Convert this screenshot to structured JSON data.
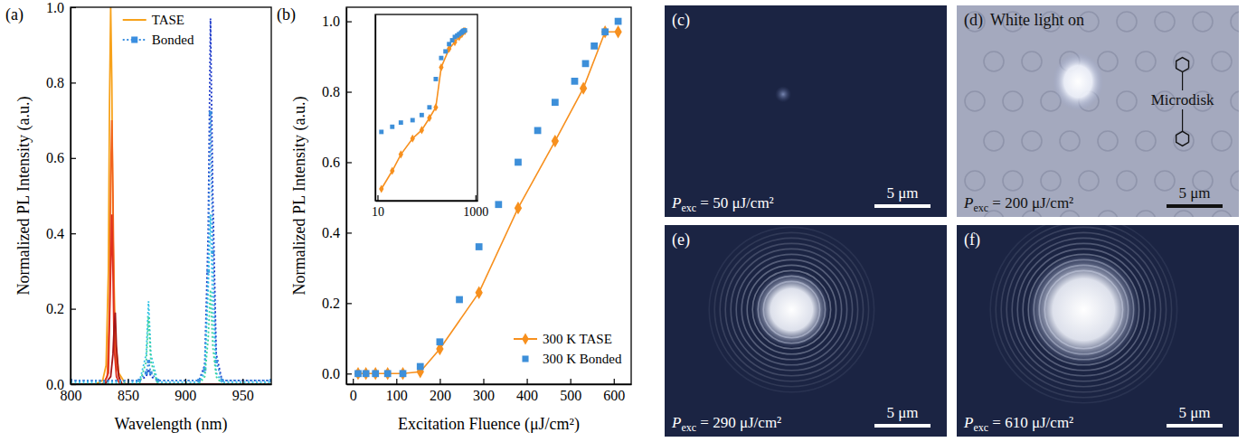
{
  "chart_data": [
    {
      "type": "line",
      "title": "(a)",
      "xlabel": "Wavelength (nm)",
      "ylabel": "Normalized PL Intensity (a.u.)",
      "xlim": [
        800,
        975
      ],
      "xticks": [
        800,
        850,
        900,
        950
      ],
      "ylim": [
        0,
        1
      ],
      "yticks": [
        {
          "value": 0,
          "label": "0.0"
        },
        {
          "value": 0.2,
          "label": "0.2"
        },
        {
          "value": 0.4,
          "label": "0.4"
        },
        {
          "value": 0.6,
          "label": "0.6"
        },
        {
          "value": 0.8,
          "label": "0.8"
        },
        {
          "value": 1,
          "label": "1.0"
        }
      ],
      "legend": "upper center",
      "series": [
        {
          "name": "TASE",
          "color": "#f7a21b",
          "line_style": "solid",
          "x": [
            800,
            822,
            828,
            831,
            833,
            834,
            835,
            836,
            837,
            839,
            842,
            848,
            975
          ],
          "values": [
            0,
            0,
            0.01,
            0.05,
            0.3,
            0.75,
            1.0,
            0.8,
            0.4,
            0.12,
            0.03,
            0,
            0
          ]
        },
        {
          "color": "#f2641e",
          "line_style": "solid",
          "x": [
            800,
            828,
            832,
            834,
            835,
            836,
            837,
            838,
            840,
            844,
            975
          ],
          "values": [
            0,
            0,
            0.02,
            0.2,
            0.55,
            0.7,
            0.5,
            0.2,
            0.05,
            0,
            0
          ]
        },
        {
          "color": "#e0301e",
          "line_style": "solid",
          "x": [
            800,
            829,
            833,
            835,
            836,
            837,
            838,
            840,
            843,
            975
          ],
          "values": [
            0,
            0,
            0.03,
            0.3,
            0.45,
            0.3,
            0.1,
            0.02,
            0,
            0
          ]
        },
        {
          "color": "#a51515",
          "line_style": "solid",
          "x": [
            800,
            830,
            835,
            837,
            838,
            839,
            840,
            842,
            845,
            975
          ],
          "values": [
            0,
            0,
            0.02,
            0.08,
            0.15,
            0.19,
            0.1,
            0.02,
            0,
            0
          ]
        },
        {
          "color": "#1533c8",
          "line_style": "dotted",
          "x": [
            800,
            860,
            866,
            868,
            870,
            876,
            912,
            917,
            920,
            922,
            924,
            927,
            932,
            975
          ],
          "values": [
            0.01,
            0.01,
            0.02,
            0.04,
            0.02,
            0.01,
            0.01,
            0.05,
            0.4,
            0.97,
            0.5,
            0.08,
            0.01,
            0.01
          ]
        },
        {
          "name": "Bonded",
          "color": "#3a8ee0",
          "line_style": "dotted",
          "marker": "square",
          "x": [
            800,
            860,
            866,
            868,
            870,
            876,
            912,
            917,
            920,
            922,
            924,
            927,
            932,
            975
          ],
          "values": [
            0.01,
            0.01,
            0.03,
            0.06,
            0.03,
            0.01,
            0.01,
            0.04,
            0.3,
            0.72,
            0.35,
            0.06,
            0.01,
            0.01
          ]
        },
        {
          "color": "#2fc3e6",
          "line_style": "dotted",
          "x": [
            800,
            860,
            866,
            868,
            870,
            876,
            912,
            917,
            920,
            922,
            924,
            927,
            932,
            975
          ],
          "values": [
            0.005,
            0.005,
            0.08,
            0.22,
            0.08,
            0.005,
            0.005,
            0.03,
            0.25,
            0.45,
            0.2,
            0.03,
            0.005,
            0.005
          ]
        },
        {
          "color": "#3dd49b",
          "line_style": "dotted",
          "x": [
            800,
            860,
            866,
            868,
            870,
            876,
            912,
            917,
            920,
            922,
            924,
            927,
            932,
            975
          ],
          "values": [
            0,
            0,
            0.06,
            0.18,
            0.06,
            0,
            0,
            0.02,
            0.12,
            0.25,
            0.1,
            0.02,
            0,
            0
          ]
        }
      ]
    },
    {
      "type": "scatter",
      "title": "(b)",
      "xlabel": "Excitation Fluence (μJ/cm²)",
      "ylabel": "Normalized PL Intensity (a.u.)",
      "xlim": [
        -15,
        640
      ],
      "xticks": [
        0,
        100,
        200,
        300,
        400,
        500,
        600
      ],
      "ylim": [
        -0.03,
        1.04
      ],
      "yticks": [
        {
          "value": 0,
          "label": "0.0"
        },
        {
          "value": 0.2,
          "label": "0.2"
        },
        {
          "value": 0.4,
          "label": "0.4"
        },
        {
          "value": 0.6,
          "label": "0.6"
        },
        {
          "value": 0.8,
          "label": "0.8"
        },
        {
          "value": 1,
          "label": "1.0"
        }
      ],
      "legend": "lower right",
      "series": [
        {
          "name": "300 K TASE",
          "color": "#f7901e",
          "marker": "diamond",
          "line_style": "solid",
          "x": [
            12,
            30,
            52,
            80,
            115,
            155,
            200,
            290,
            380,
            465,
            530,
            580,
            610
          ],
          "values": [
            0,
            0,
            0,
            0,
            0,
            0.005,
            0.07,
            0.23,
            0.47,
            0.66,
            0.81,
            0.97,
            0.97
          ]
        },
        {
          "name": "300 K Bonded",
          "color": "#3d8fd9",
          "marker": "square",
          "line_style": "none",
          "x": [
            12,
            30,
            52,
            80,
            115,
            155,
            200,
            245,
            290,
            335,
            380,
            425,
            465,
            510,
            535,
            555,
            580,
            610
          ],
          "values": [
            0,
            0,
            0,
            0,
            0,
            0.02,
            0.09,
            0.21,
            0.36,
            0.48,
            0.6,
            0.69,
            0.77,
            0.83,
            0.88,
            0.93,
            0.97,
            1.0
          ]
        }
      ]
    },
    {
      "type": "scatter",
      "log": true,
      "tick_labels": "x",
      "xlim": [
        9,
        1100
      ],
      "xticks": [
        10,
        1000
      ],
      "ylim": [
        0.0006,
        2
      ],
      "yticks": [],
      "series": [
        {
          "color": "#f7901e",
          "marker": "diamond",
          "line_style": "solid",
          "x": [
            12,
            20,
            30,
            52,
            80,
            115,
            155,
            200,
            290,
            380,
            465,
            530,
            580,
            610
          ],
          "values": [
            0.001,
            0.0022,
            0.0045,
            0.009,
            0.013,
            0.022,
            0.035,
            0.2,
            0.45,
            0.6,
            0.75,
            0.85,
            0.97,
            0.97
          ]
        },
        {
          "color": "#3d8fd9",
          "marker": "square",
          "line_style": "none",
          "x": [
            12,
            20,
            30,
            52,
            80,
            115,
            155,
            200,
            245,
            290,
            335,
            380,
            425,
            465,
            510,
            535,
            555,
            580,
            610
          ],
          "values": [
            0.012,
            0.015,
            0.018,
            0.02,
            0.025,
            0.035,
            0.12,
            0.3,
            0.4,
            0.55,
            0.65,
            0.75,
            0.8,
            0.85,
            0.9,
            0.93,
            0.97,
            0.99,
            1.0
          ]
        }
      ]
    }
  ],
  "images": [
    {
      "letter": "(c)",
      "label": {
        "symbol": "P",
        "subscript": "exc",
        "text": " = 50 μJ/cm²"
      },
      "scale_bar": "5 μm"
    },
    {
      "letter": "(d)",
      "title": "White light on",
      "annotation": "Microdisk",
      "label": {
        "symbol": "P",
        "subscript": "exc",
        "text": " = 200 μJ/cm²"
      },
      "scale_bar": "5 μm"
    },
    {
      "letter": "(e)",
      "label": {
        "symbol": "P",
        "subscript": "exc",
        "text": " = 290 μJ/cm²"
      },
      "scale_bar": "5 μm"
    },
    {
      "letter": "(f)",
      "label": {
        "symbol": "P",
        "subscript": "exc",
        "text": " = 610 μJ/cm²"
      },
      "scale_bar": "5 μm"
    }
  ]
}
